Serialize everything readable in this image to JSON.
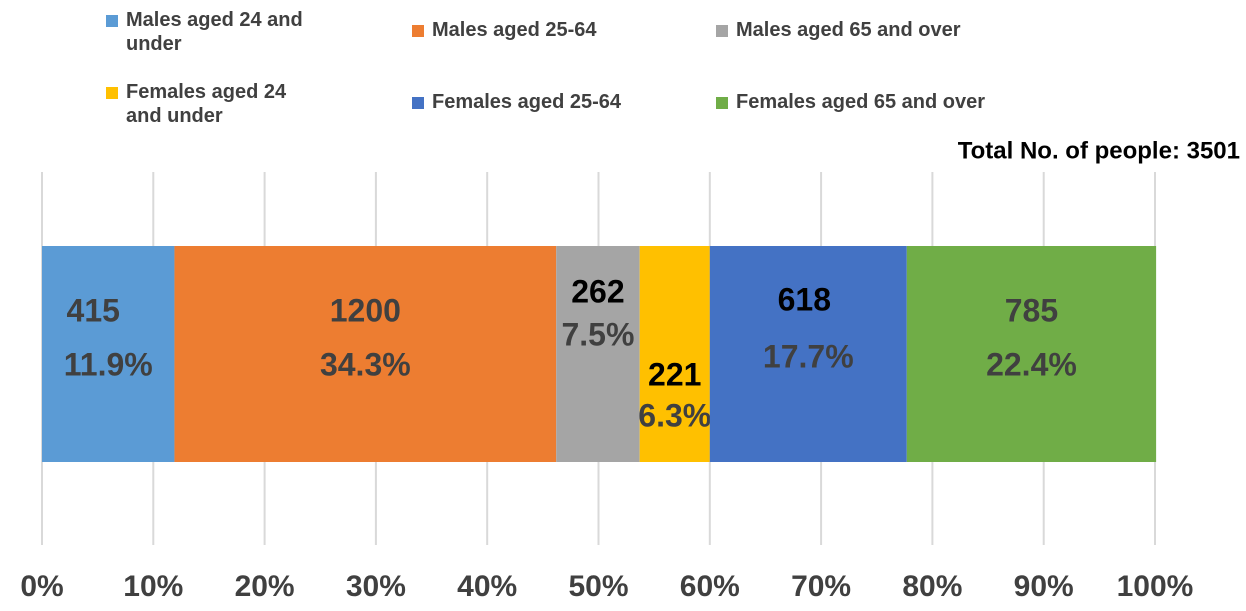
{
  "chart_data": {
    "type": "stacked_bar_100",
    "total_label": "Total No. of people: 3501",
    "series": [
      {
        "name": "Males aged 24 and under",
        "color": "#5b9bd5",
        "values": [
          11.9
        ],
        "value_labels": [
          "11.9%"
        ],
        "counts": [
          415
        ]
      },
      {
        "name": "Males aged 25-64",
        "color": "#ed7d31",
        "values": [
          34.3
        ],
        "value_labels": [
          "34.3%"
        ],
        "counts": [
          1200
        ]
      },
      {
        "name": "Males aged 65 and over",
        "color": "#a5a5a5",
        "values": [
          7.5
        ],
        "value_labels": [
          "7.5%"
        ],
        "counts": [
          262
        ]
      },
      {
        "name": "Females aged 24 and under",
        "color": "#ffc000",
        "values": [
          6.3
        ],
        "value_labels": [
          "6.3%"
        ],
        "counts": [
          221
        ]
      },
      {
        "name": "Females aged 25-64",
        "color": "#4472c4",
        "values": [
          17.7
        ],
        "value_labels": [
          "17.7%"
        ],
        "counts": [
          618
        ]
      },
      {
        "name": "Females aged 65 and over",
        "color": "#70ad47",
        "values": [
          22.4
        ],
        "value_labels": [
          "22.4%"
        ],
        "counts": [
          785
        ]
      }
    ],
    "xlim": [
      0,
      100
    ],
    "xticks": [
      {
        "value": 0,
        "label": "0%"
      },
      {
        "value": 10,
        "label": "10%"
      },
      {
        "value": 20,
        "label": "20%"
      },
      {
        "value": 30,
        "label": "30%"
      },
      {
        "value": 40,
        "label": "40%"
      },
      {
        "value": 50,
        "label": "50%"
      },
      {
        "value": 60,
        "label": "60%"
      },
      {
        "value": 70,
        "label": "70%"
      },
      {
        "value": 80,
        "label": "80%"
      },
      {
        "value": 90,
        "label": "90%"
      },
      {
        "value": 100,
        "label": "100%"
      }
    ],
    "grid": true
  }
}
